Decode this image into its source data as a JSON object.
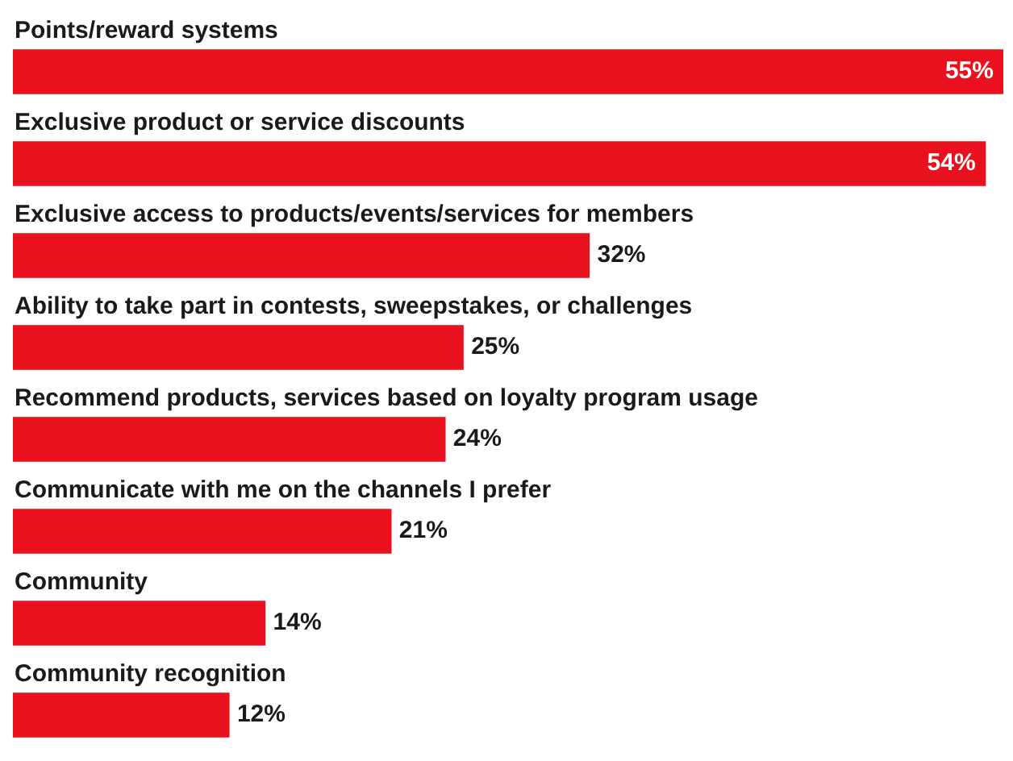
{
  "chart_data": {
    "type": "bar",
    "orientation": "horizontal",
    "categories": [
      "Points/reward systems",
      "Exclusive product or service discounts",
      "Exclusive access to products/events/services for members",
      "Ability to take part in contests, sweepstakes, or challenges",
      "Recommend products, services based on loyalty program usage",
      "Communicate with me on the channels I prefer",
      "Community",
      "Community recognition"
    ],
    "series": [
      {
        "color": "#e8111d",
        "values": [
          55,
          54,
          32,
          25,
          24,
          21,
          14,
          12
        ],
        "value_labels": [
          "55%",
          "54%",
          "32%",
          "25%",
          "24%",
          "21%",
          "14%",
          "12%"
        ]
      }
    ]
  }
}
